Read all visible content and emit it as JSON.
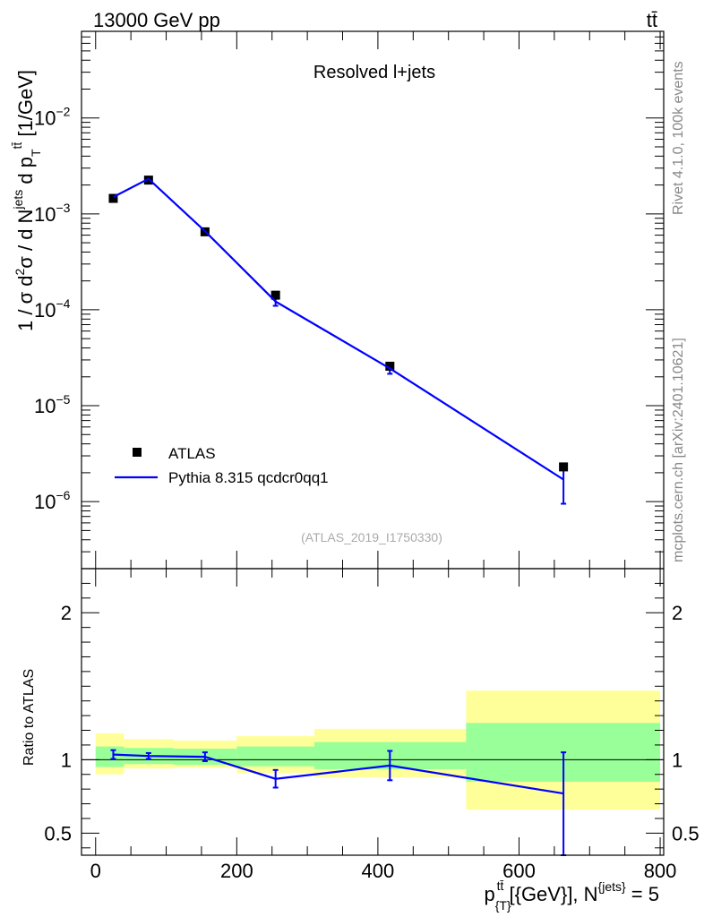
{
  "header": {
    "energy_label": "13000 GeV pp",
    "process_label": "tt̄"
  },
  "side_labels": {
    "rivet": "Rivet 4.1.0,  100k events",
    "mcplots": "mcplots.cern.ch [arXiv:2401.10621]"
  },
  "chart_data": [
    {
      "type": "scatter",
      "panel": "main",
      "title": "Resolved l+jets",
      "analysis_label": "(ATLAS_2019_I1750330)",
      "ylabel": "1 / σ d²σ /  d N^{jets} d p_{T}^{tt̄} [1/GeV]",
      "yscale": "log",
      "ylim": [
        2e-07,
        0.08
      ],
      "xlim": [
        -20,
        805
      ],
      "y_tick_labels": [
        "10^-6",
        "10^-5",
        "10^-4",
        "10^-3",
        "10^-2"
      ],
      "legend": {
        "position": "bottom-left",
        "entries": [
          "ATLAS",
          "Pythia 8.315 qcdcr0qq1"
        ]
      },
      "series": [
        {
          "name": "ATLAS",
          "style": "markers",
          "color": "#000000",
          "x": [
            25,
            75,
            155,
            255,
            417,
            663
          ],
          "y": [
            0.00145,
            0.00225,
            0.00065,
            0.000142,
            2.58e-05,
            2.3e-06
          ]
        },
        {
          "name": "Pythia 8.315 qcdcr0qq1",
          "style": "line",
          "color": "#0000ff",
          "x": [
            25,
            75,
            155,
            255,
            417,
            663
          ],
          "y": [
            0.0015,
            0.00232,
            0.00066,
            0.000122,
            2.45e-05,
            1.7e-06
          ],
          "err_low": [
            4e-05,
            5e-05,
            2e-05,
            1.2e-05,
            3e-06,
            7.5e-07
          ],
          "err_high": [
            4e-05,
            5e-05,
            2e-05,
            1.2e-05,
            3e-06,
            7.5e-07
          ]
        }
      ]
    },
    {
      "type": "line",
      "panel": "ratio",
      "ylabel": "Ratio to ATLAS",
      "xlabel": "p_{T}^{tt̄} [{GeV}], N^{jets} = 5",
      "ylim": [
        0.35,
        2.3
      ],
      "xlim": [
        -20,
        805
      ],
      "x_tick_labels": [
        "0",
        "200",
        "400",
        "600",
        "800"
      ],
      "y_tick_labels": [
        "0.5",
        "1",
        "2"
      ],
      "bands": {
        "bin_edges": [
          0,
          40,
          110,
          200,
          310,
          525,
          800
        ],
        "total_low": [
          0.9,
          0.94,
          0.945,
          0.91,
          0.88,
          0.66
        ],
        "total_high": [
          1.18,
          1.14,
          1.13,
          1.16,
          1.21,
          1.47
        ],
        "stat_low": [
          0.95,
          0.97,
          0.965,
          0.955,
          0.935,
          0.85
        ],
        "stat_high": [
          1.09,
          1.08,
          1.075,
          1.09,
          1.12,
          1.25
        ],
        "total_color": "#ffff99",
        "stat_color": "#99ff99"
      },
      "series": [
        {
          "name": "Pythia 8.315 qcdcr0qq1 / ATLAS",
          "color": "#0000ff",
          "x": [
            25,
            75,
            155,
            255,
            417,
            663
          ],
          "y": [
            1.035,
            1.025,
            1.02,
            0.87,
            0.96,
            0.77
          ],
          "err_low": [
            0.03,
            0.02,
            0.03,
            0.06,
            0.1,
            0.42
          ],
          "err_high": [
            0.03,
            0.02,
            0.03,
            0.06,
            0.1,
            0.28
          ]
        }
      ]
    }
  ]
}
